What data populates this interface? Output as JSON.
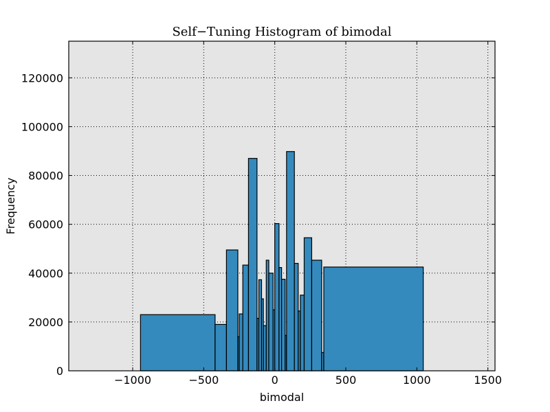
{
  "chart_data": {
    "type": "bar",
    "title": "Self−Tuning Histogram of bimodal",
    "xlabel": "bimodal",
    "ylabel": "Frequency",
    "xlim": [
      -1450,
      1550
    ],
    "ylim": [
      0,
      135000
    ],
    "xticks": [
      -1000,
      -500,
      0,
      500,
      1000,
      1500
    ],
    "xtick_labels": [
      "−1000",
      "−500",
      "0",
      "500",
      "1000",
      "1500"
    ],
    "yticks": [
      0,
      20000,
      40000,
      60000,
      80000,
      100000,
      120000
    ],
    "ytick_labels": [
      "0",
      "20000",
      "40000",
      "60000",
      "80000",
      "100000",
      "120000"
    ],
    "grid": true,
    "bar_color": "#348abd",
    "background_color": "#e5e5e5",
    "bins": [
      {
        "x0": -945,
        "x1": -420,
        "value": 23000
      },
      {
        "x0": -420,
        "x1": -340,
        "value": 19000
      },
      {
        "x0": -340,
        "x1": -260,
        "value": 49500
      },
      {
        "x0": -260,
        "x1": -250,
        "value": 14000
      },
      {
        "x0": -250,
        "x1": -225,
        "value": 23300
      },
      {
        "x0": -225,
        "x1": -185,
        "value": 43300
      },
      {
        "x0": -185,
        "x1": -125,
        "value": 87000
      },
      {
        "x0": -125,
        "x1": -112,
        "value": 21500
      },
      {
        "x0": -112,
        "x1": -93,
        "value": 37300
      },
      {
        "x0": -93,
        "x1": -80,
        "value": 29500
      },
      {
        "x0": -80,
        "x1": -60,
        "value": 18500
      },
      {
        "x0": -60,
        "x1": -42,
        "value": 45300
      },
      {
        "x0": -42,
        "x1": -12,
        "value": 40000
      },
      {
        "x0": -12,
        "x1": 0,
        "value": 25000
      },
      {
        "x0": 0,
        "x1": 30,
        "value": 60300
      },
      {
        "x0": 30,
        "x1": 48,
        "value": 42300
      },
      {
        "x0": 48,
        "x1": 73,
        "value": 37500
      },
      {
        "x0": 73,
        "x1": 83,
        "value": 14500
      },
      {
        "x0": 83,
        "x1": 138,
        "value": 89800
      },
      {
        "x0": 138,
        "x1": 165,
        "value": 44000
      },
      {
        "x0": 165,
        "x1": 180,
        "value": 24500
      },
      {
        "x0": 180,
        "x1": 207,
        "value": 31000
      },
      {
        "x0": 207,
        "x1": 260,
        "value": 54500
      },
      {
        "x0": 260,
        "x1": 330,
        "value": 45300
      },
      {
        "x0": 330,
        "x1": 345,
        "value": 7500
      },
      {
        "x0": 345,
        "x1": 1045,
        "value": 42500
      }
    ]
  }
}
